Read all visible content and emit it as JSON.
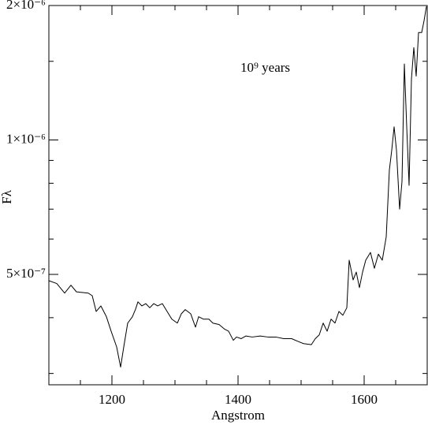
{
  "chart_data": {
    "type": "line",
    "xlabel": "Angstrom",
    "ylabel": "Fλ",
    "annotation": "10⁹ years",
    "color": "#000000",
    "log_y": true,
    "xlim": [
      1100,
      1700
    ],
    "xticks": [
      1200,
      1400,
      1600
    ],
    "xticks_minor": [
      1150,
      1250,
      1300,
      1350,
      1450,
      1500,
      1550,
      1650
    ],
    "ylim": [
      2.83e-07,
      2e-06
    ],
    "yticks": [
      {
        "value": 5e-07,
        "label": "5×10⁻⁷"
      },
      {
        "value": 1e-06,
        "label": "1×10⁻⁶"
      },
      {
        "value": 2e-06,
        "label": "2×10⁻⁶"
      }
    ],
    "yticks_minor": [
      3e-07,
      4e-07,
      6e-07,
      7e-07,
      8e-07,
      9e-07,
      1.5e-06
    ],
    "x": [
      1100,
      1112.5,
      1125,
      1135,
      1143.75,
      1162.5,
      1168.75,
      1175,
      1182.5,
      1191.25,
      1198.75,
      1207.5,
      1213.75,
      1218.75,
      1225,
      1232.5,
      1237.5,
      1241.25,
      1247.5,
      1253.75,
      1260,
      1266.25,
      1272.5,
      1280,
      1287.5,
      1295,
      1303.75,
      1310,
      1316.25,
      1325,
      1332.5,
      1337.5,
      1345,
      1353.75,
      1360,
      1370,
      1378.75,
      1385,
      1392.5,
      1397.5,
      1405,
      1412.5,
      1422.5,
      1435,
      1447.5,
      1460,
      1472.5,
      1485,
      1495,
      1503.75,
      1516.25,
      1522.5,
      1528.75,
      1535,
      1541.25,
      1547.5,
      1553.75,
      1560,
      1566.25,
      1572.5,
      1576.25,
      1582.5,
      1587.5,
      1592.5,
      1597.5,
      1602.5,
      1610,
      1616.25,
      1622.5,
      1628.75,
      1635,
      1640,
      1643.75,
      1647.5,
      1651.25,
      1656.25,
      1660,
      1663.75,
      1667.5,
      1671.25,
      1675,
      1678.75,
      1682.5,
      1686.25,
      1691.25,
      1695,
      1698.75
    ],
    "values": [
      4.84e-07,
      4.77e-07,
      4.54e-07,
      4.73e-07,
      4.57e-07,
      4.54e-07,
      4.48e-07,
      4.13e-07,
      4.25e-07,
      4.02e-07,
      3.73e-07,
      3.44e-07,
      3.1e-07,
      3.44e-07,
      3.89e-07,
      4.02e-07,
      4.18e-07,
      4.34e-07,
      4.25e-07,
      4.3e-07,
      4.21e-07,
      4.3e-07,
      4.25e-07,
      4.3e-07,
      4.13e-07,
      3.97e-07,
      3.89e-07,
      4.08e-07,
      4.17e-07,
      4.08e-07,
      3.81e-07,
      4.02e-07,
      3.97e-07,
      3.97e-07,
      3.89e-07,
      3.86e-07,
      3.77e-07,
      3.73e-07,
      3.56e-07,
      3.62e-07,
      3.59e-07,
      3.64e-07,
      3.62e-07,
      3.64e-07,
      3.62e-07,
      3.62e-07,
      3.59e-07,
      3.59e-07,
      3.54e-07,
      3.5e-07,
      3.48e-07,
      3.59e-07,
      3.66e-07,
      3.89e-07,
      3.73e-07,
      3.97e-07,
      3.89e-07,
      4.13e-07,
      4.05e-07,
      4.21e-07,
      5.38e-07,
      4.86e-07,
      5.06e-07,
      4.67e-07,
      5.06e-07,
      5.38e-07,
      5.6e-07,
      5.16e-07,
      5.55e-07,
      5.38e-07,
      6.07e-07,
      8.57e-07,
      9.49e-07,
      1.07e-06,
      9.49e-07,
      7e-07,
      8.07e-07,
      1.48e-06,
      1.07e-06,
      7.91e-07,
      1.37e-06,
      1.61e-06,
      1.39e-06,
      1.74e-06,
      1.74e-06,
      1.85e-06,
      1.99e-06
    ]
  }
}
